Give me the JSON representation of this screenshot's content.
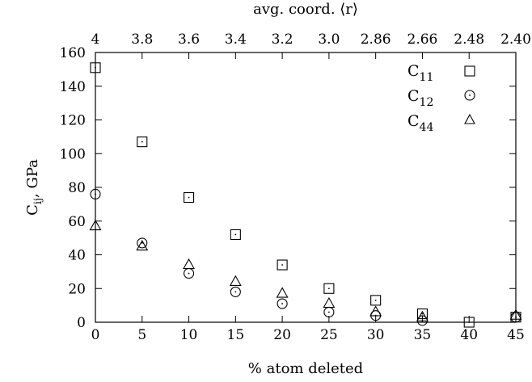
{
  "chart_data": {
    "type": "scatter",
    "xlabel": "% atom deleted",
    "ylabel_main": "C",
    "ylabel_sub": "ij",
    "ylabel_tail": ", GPa",
    "x2label": "avg. coord. ⟨r⟩",
    "xlim": [
      0,
      45
    ],
    "ylim": [
      0,
      160
    ],
    "xticks": [
      0,
      5,
      10,
      15,
      20,
      25,
      30,
      35,
      40,
      45
    ],
    "yticks": [
      0,
      20,
      40,
      60,
      80,
      100,
      120,
      140,
      160
    ],
    "x2ticks": [
      {
        "x": 0,
        "label": "4"
      },
      {
        "x": 5,
        "label": "3.8"
      },
      {
        "x": 10,
        "label": "3.6"
      },
      {
        "x": 15,
        "label": "3.4"
      },
      {
        "x": 20,
        "label": "3.2"
      },
      {
        "x": 25,
        "label": "3.0"
      },
      {
        "x": 30,
        "label": "2.86"
      },
      {
        "x": 35,
        "label": "2.66"
      },
      {
        "x": 40,
        "label": "2.48"
      },
      {
        "x": 45,
        "label": "2.40"
      }
    ],
    "legend_position": "top-right",
    "series": [
      {
        "name_main": "C",
        "name_sub": "11",
        "marker": "square",
        "x": [
          0,
          5,
          10,
          15,
          20,
          25,
          30,
          35,
          40,
          45
        ],
        "y": [
          151,
          107,
          74,
          52,
          34,
          20,
          13,
          5,
          0,
          3
        ]
      },
      {
        "name_main": "C",
        "name_sub": "12",
        "marker": "circle",
        "x": [
          0,
          5,
          10,
          15,
          20,
          25,
          30,
          35,
          45
        ],
        "y": [
          76,
          47,
          29,
          18,
          11,
          6,
          4,
          1,
          3
        ]
      },
      {
        "name_main": "C",
        "name_sub": "44",
        "marker": "triangle",
        "x": [
          0,
          5,
          10,
          15,
          20,
          25,
          30,
          35,
          45
        ],
        "y": [
          57,
          45,
          34,
          24,
          17,
          11,
          6,
          3,
          4
        ]
      }
    ]
  }
}
